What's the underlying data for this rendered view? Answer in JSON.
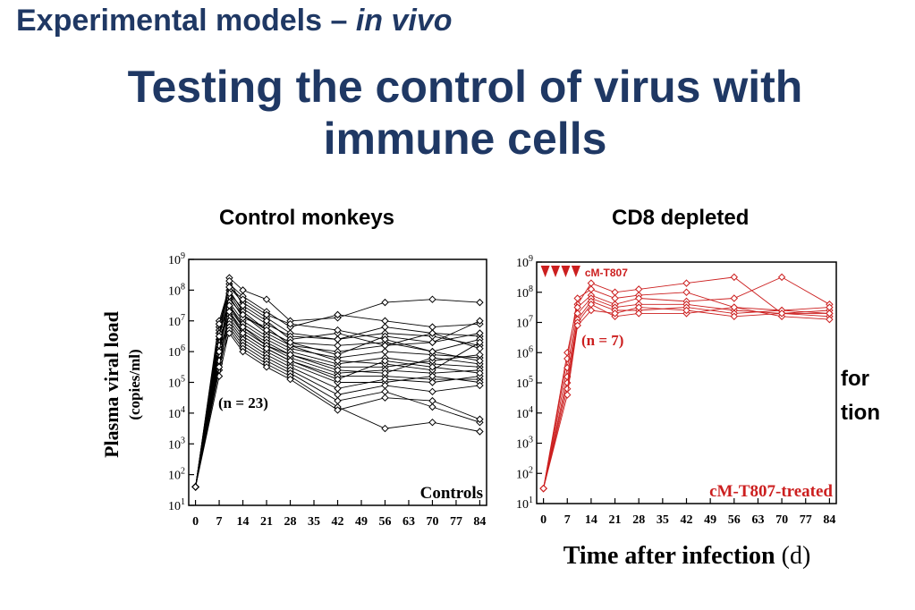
{
  "slide": {
    "header_main": "Experimental models – ",
    "header_italic": "in vivo",
    "title_line1": "Testing the control of virus with",
    "title_line2": "immune cells",
    "panel_left_heading": "Control monkeys",
    "panel_right_heading": "CD8 depleted",
    "stray_text_1": "for",
    "stray_text_2": "tion"
  },
  "colors": {
    "title": "#1f3864",
    "controls": "#000000",
    "treated": "#cc1f1f"
  },
  "chart_data": [
    {
      "type": "line",
      "ylabel": "Plasma viral load",
      "ylabel_units": "(copies/ml)",
      "yscale": "log",
      "ylim_exp": [
        1,
        9
      ],
      "ytick_exps": [
        1,
        2,
        3,
        4,
        5,
        6,
        7,
        8,
        9
      ],
      "xlim": [
        -2,
        86
      ],
      "xticks": [
        0,
        7,
        14,
        21,
        28,
        35,
        42,
        49,
        56,
        63,
        70,
        77,
        84
      ],
      "annotation_n": "(n = 23)",
      "corner_label": "Controls",
      "series_log10": [
        {
          "x": [
            0,
            7,
            10,
            14,
            21,
            28,
            42,
            56,
            70,
            84
          ],
          "y": [
            1.6,
            6.5,
            8.4,
            8.0,
            7.7,
            7.0,
            7.1,
            7.6,
            7.7,
            7.6
          ]
        },
        {
          "x": [
            0,
            7,
            10,
            14,
            21,
            28,
            42,
            56,
            70,
            84
          ],
          "y": [
            1.6,
            6.8,
            8.2,
            7.8,
            7.3,
            6.8,
            7.2,
            7.0,
            6.8,
            6.9
          ]
        },
        {
          "x": [
            0,
            7,
            10,
            14,
            21,
            28,
            42,
            56,
            70,
            84
          ],
          "y": [
            1.6,
            7.0,
            8.1,
            7.6,
            7.1,
            6.6,
            6.4,
            6.8,
            6.6,
            6.5
          ]
        },
        {
          "x": [
            0,
            7,
            10,
            14,
            21,
            28,
            42,
            56,
            70,
            84
          ],
          "y": [
            1.6,
            6.4,
            7.9,
            7.4,
            6.9,
            6.5,
            6.4,
            6.6,
            6.5,
            6.2
          ]
        },
        {
          "x": [
            0,
            7,
            10,
            14,
            21,
            28,
            42,
            56,
            70,
            84
          ],
          "y": [
            1.6,
            6.9,
            8.0,
            7.3,
            6.7,
            6.3,
            6.2,
            6.3,
            6.0,
            6.4
          ]
        },
        {
          "x": [
            0,
            7,
            10,
            14,
            21,
            28,
            42,
            56,
            70,
            84
          ],
          "y": [
            1.6,
            6.2,
            7.7,
            7.2,
            6.6,
            6.2,
            6.0,
            6.2,
            6.6,
            6.1
          ]
        },
        {
          "x": [
            0,
            7,
            10,
            14,
            21,
            28,
            42,
            56,
            70,
            84
          ],
          "y": [
            1.6,
            6.6,
            7.6,
            7.0,
            6.5,
            6.1,
            5.8,
            6.0,
            5.9,
            5.8
          ]
        },
        {
          "x": [
            0,
            7,
            10,
            14,
            21,
            28,
            42,
            56,
            70,
            84
          ],
          "y": [
            1.6,
            6.0,
            7.5,
            6.9,
            6.4,
            6.0,
            5.6,
            5.8,
            5.6,
            5.5
          ]
        },
        {
          "x": [
            0,
            7,
            10,
            14,
            21,
            28,
            42,
            56,
            70,
            84
          ],
          "y": [
            1.6,
            6.7,
            7.4,
            6.8,
            6.3,
            5.9,
            5.5,
            5.5,
            5.7,
            5.9
          ]
        },
        {
          "x": [
            0,
            7,
            10,
            14,
            21,
            28,
            42,
            56,
            70,
            84
          ],
          "y": [
            1.6,
            5.8,
            7.3,
            6.7,
            6.2,
            5.8,
            5.3,
            5.4,
            5.3,
            5.4
          ]
        },
        {
          "x": [
            0,
            7,
            10,
            14,
            21,
            28,
            42,
            56,
            70,
            84
          ],
          "y": [
            1.6,
            6.3,
            7.2,
            6.6,
            6.1,
            5.7,
            5.2,
            5.2,
            5.1,
            5.1
          ]
        },
        {
          "x": [
            0,
            7,
            10,
            14,
            21,
            28,
            42,
            56,
            70,
            84
          ],
          "y": [
            1.6,
            5.6,
            7.1,
            6.5,
            6.0,
            5.6,
            5.0,
            5.0,
            5.2,
            5.0
          ]
        },
        {
          "x": [
            0,
            7,
            10,
            14,
            21,
            28,
            42,
            56,
            70,
            84
          ],
          "y": [
            1.6,
            6.1,
            7.0,
            6.4,
            5.9,
            5.5,
            4.8,
            5.1,
            5.0,
            5.2
          ]
        },
        {
          "x": [
            0,
            7,
            10,
            14,
            21,
            28,
            42,
            56,
            70,
            84
          ],
          "y": [
            1.6,
            5.4,
            6.9,
            6.3,
            5.8,
            5.4,
            4.6,
            4.9,
            4.7,
            4.9
          ]
        },
        {
          "x": [
            0,
            7,
            10,
            14,
            21,
            28,
            42,
            56,
            70,
            84
          ],
          "y": [
            1.6,
            5.9,
            6.8,
            6.2,
            5.7,
            5.3,
            4.4,
            4.7,
            4.2,
            3.7
          ]
        },
        {
          "x": [
            0,
            7,
            10,
            14,
            21,
            28,
            42,
            56,
            70,
            84
          ],
          "y": [
            1.6,
            5.2,
            6.7,
            6.1,
            5.6,
            5.2,
            4.2,
            3.5,
            3.7,
            3.4
          ]
        },
        {
          "x": [
            0,
            7,
            10,
            14,
            21,
            28,
            42,
            56,
            70,
            84
          ],
          "y": [
            1.6,
            5.7,
            6.6,
            6.0,
            5.5,
            5.1,
            4.1,
            4.5,
            4.4,
            3.8
          ]
        },
        {
          "x": [
            0,
            7,
            10,
            14,
            21,
            28,
            42,
            56,
            70,
            84
          ],
          "y": [
            1.6,
            6.6,
            8.3,
            7.5,
            7.0,
            6.4,
            6.6,
            6.2,
            6.3,
            7.0
          ]
        },
        {
          "x": [
            0,
            7,
            10,
            14,
            21,
            28,
            42,
            56,
            70,
            84
          ],
          "y": [
            1.6,
            6.9,
            7.8,
            7.1,
            6.8,
            6.2,
            5.7,
            5.6,
            5.4,
            6.3
          ]
        },
        {
          "x": [
            0,
            7,
            10,
            14,
            21,
            28,
            42,
            56,
            70,
            84
          ],
          "y": [
            1.6,
            6.2,
            7.5,
            6.8,
            6.2,
            5.9,
            5.4,
            5.3,
            5.8,
            5.6
          ]
        },
        {
          "x": [
            0,
            7,
            10,
            14,
            21,
            28,
            42,
            56,
            70,
            84
          ],
          "y": [
            1.6,
            6.0,
            7.9,
            7.2,
            6.7,
            6.3,
            5.9,
            6.5,
            6.3,
            6.6
          ]
        },
        {
          "x": [
            0,
            7,
            10,
            14,
            21,
            28,
            42,
            56,
            70,
            84
          ],
          "y": [
            1.6,
            5.5,
            7.3,
            6.6,
            6.1,
            5.7,
            5.1,
            5.7,
            5.5,
            5.3
          ]
        },
        {
          "x": [
            0,
            7,
            10,
            14,
            21,
            28,
            42,
            56,
            70,
            84
          ],
          "y": [
            1.6,
            6.5,
            8.1,
            7.7,
            7.2,
            6.9,
            6.7,
            6.4,
            6.0,
            5.7
          ]
        }
      ]
    },
    {
      "type": "line",
      "yscale": "log",
      "ylim_exp": [
        1,
        9
      ],
      "ytick_exps": [
        1,
        2,
        3,
        4,
        5,
        6,
        7,
        8,
        9
      ],
      "xlim": [
        -2,
        86
      ],
      "xticks": [
        0,
        7,
        14,
        21,
        28,
        35,
        42,
        49,
        56,
        63,
        70,
        77,
        84
      ],
      "xlabel": "Time after infection",
      "xlabel_units": "(d)",
      "treatment_label": "cM-T807",
      "treatment_days": [
        0,
        3,
        6,
        9
      ],
      "annotation_n": "(n = 7)",
      "corner_label": "cM-T807-treated",
      "series_log10": [
        {
          "x": [
            0,
            7,
            10,
            14,
            21,
            28,
            42,
            56,
            70,
            84
          ],
          "y": [
            1.5,
            6.0,
            7.6,
            8.3,
            8.0,
            8.1,
            8.3,
            8.5,
            7.3,
            7.4
          ]
        },
        {
          "x": [
            0,
            7,
            10,
            14,
            21,
            28,
            42,
            56,
            70,
            84
          ],
          "y": [
            1.5,
            5.8,
            7.8,
            8.1,
            7.8,
            7.9,
            8.0,
            7.5,
            7.4,
            7.3
          ]
        },
        {
          "x": [
            0,
            7,
            10,
            14,
            21,
            28,
            42,
            56,
            70,
            84
          ],
          "y": [
            1.5,
            5.5,
            7.5,
            7.9,
            7.6,
            7.8,
            7.7,
            7.8,
            8.5,
            7.6
          ]
        },
        {
          "x": [
            0,
            7,
            10,
            14,
            21,
            28,
            42,
            56,
            70,
            84
          ],
          "y": [
            1.5,
            5.2,
            7.3,
            7.8,
            7.5,
            7.6,
            7.6,
            7.4,
            7.3,
            7.2
          ]
        },
        {
          "x": [
            0,
            7,
            10,
            14,
            21,
            28,
            42,
            56,
            70,
            84
          ],
          "y": [
            1.5,
            5.0,
            7.1,
            7.7,
            7.4,
            7.4,
            7.5,
            7.3,
            7.4,
            7.5
          ]
        },
        {
          "x": [
            0,
            7,
            10,
            14,
            21,
            28,
            42,
            56,
            70,
            84
          ],
          "y": [
            1.5,
            4.8,
            7.0,
            7.6,
            7.2,
            7.3,
            7.3,
            7.5,
            7.2,
            7.1
          ]
        },
        {
          "x": [
            0,
            7,
            10,
            14,
            21,
            28,
            42,
            56,
            70,
            84
          ],
          "y": [
            1.5,
            4.6,
            6.9,
            7.4,
            7.3,
            7.5,
            7.4,
            7.2,
            7.3,
            7.3
          ]
        }
      ]
    }
  ]
}
